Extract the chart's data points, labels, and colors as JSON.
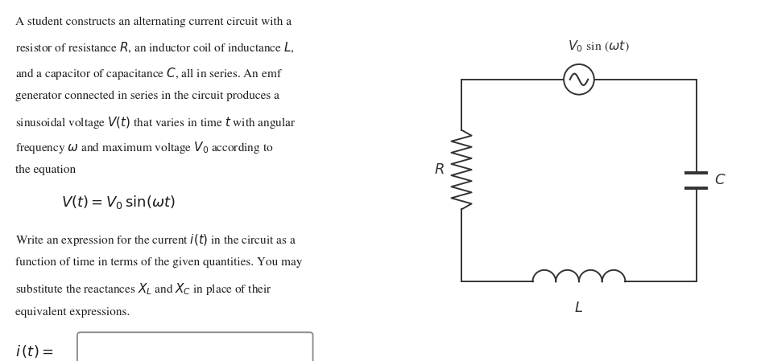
{
  "bg_color": "#ffffff",
  "text_color": "#1a1a1a",
  "paragraph1": [
    "A student constructs an alternating current circuit with a",
    "resistor of resistance $R$, an inductor coil of inductance $L$,",
    "and a capacitor of capacitance $C$, all in series. An emf",
    "generator connected in series in the circuit produces a",
    "sinusoidal voltage $V(t)$ that varies in time $t$ with angular",
    "frequency $\\omega$ and maximum voltage $V_0$ according to",
    "the equation"
  ],
  "equation": "$V(t) = V_0\\,\\mathrm{sin}(\\omega t)$",
  "paragraph2": [
    "Write an expression for the current $i(t)$ in the circuit as a",
    "function of time in terms of the given quantities. You may",
    "substitute the reactances $X_L$ and $X_C$ in place of their",
    "equivalent expressions."
  ],
  "answer_label": "$i\\,(t) =$",
  "circuit_V_label": "$V_0$ sin ($\\omega t$)",
  "circuit_R_label": "$R$",
  "circuit_L_label": "$L$",
  "circuit_C_label": "$C$",
  "line_color": "#333333",
  "font_size_body": 11.0,
  "font_size_eq": 13.0,
  "font_size_circuit": 11.5
}
